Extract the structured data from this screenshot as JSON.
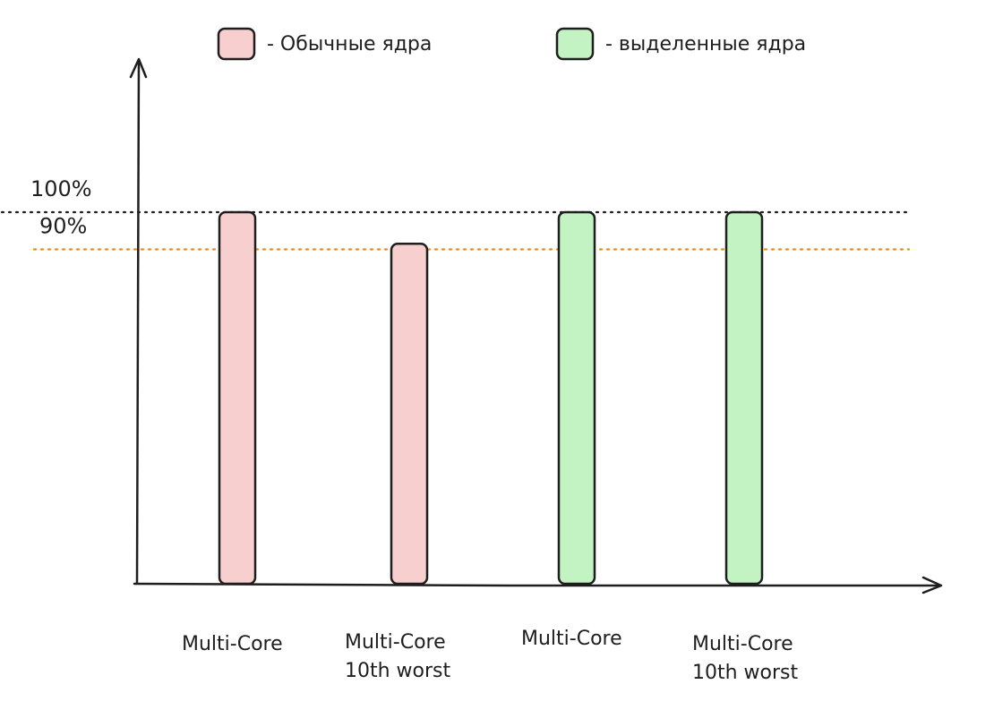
{
  "chart_data": {
    "type": "bar",
    "title": "",
    "xlabel": "",
    "ylabel": "",
    "categories": [
      [
        "Multi-Core"
      ],
      [
        "Multi-Core",
        "10th worst"
      ],
      [
        "Multi-Core"
      ],
      [
        "Multi-Core",
        "10th worst"
      ]
    ],
    "values": [
      100,
      91.5,
      100,
      100
    ],
    "bar_series": [
      "regular",
      "regular",
      "dedicated",
      "dedicated"
    ],
    "series": [
      {
        "key": "regular",
        "label": "- Обычные ядра",
        "color": "#f8cfcf"
      },
      {
        "key": "dedicated",
        "label": "- выделенные ядра",
        "color": "#c3f3c3"
      }
    ],
    "reference_lines": [
      {
        "value": 100,
        "label": "100%",
        "color": "#1e1e1e"
      },
      {
        "value": 90,
        "label": "90%",
        "color": "#f08c00"
      }
    ],
    "ylim": [
      0,
      150
    ],
    "grid": false,
    "legend_position": "top",
    "axis_color": "#1e1e1e"
  }
}
